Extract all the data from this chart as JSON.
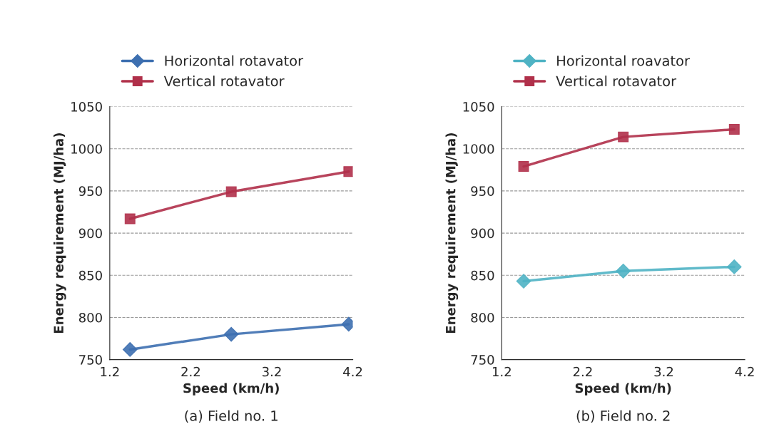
{
  "chart_data": [
    {
      "type": "line",
      "xlabel": "Speed (km/h)",
      "ylabel": "Energy requirement (MJ/ha)",
      "annotations": [
        "(a) Field no. 1"
      ],
      "series": [
        {
          "name": "Horizontal rotavator",
          "color": "#3d6fb0",
          "marker": "diamond",
          "x": [
            1.45,
            2.7,
            4.15
          ],
          "values": [
            762,
            780,
            792
          ]
        },
        {
          "name": "Vertical rotavator",
          "color": "#b0304a",
          "marker": "square",
          "x": [
            1.45,
            2.7,
            4.15
          ],
          "values": [
            917,
            949,
            973
          ]
        }
      ],
      "xlim": [
        1.2,
        4.2
      ],
      "xticks": [
        1.2,
        2.2,
        3.2,
        4.2
      ],
      "ylim": [
        750,
        1050
      ],
      "yticks": [
        750,
        800,
        850,
        900,
        950,
        1000,
        1050
      ],
      "grid": "y",
      "legend": "top",
      "line_style": "solid"
    },
    {
      "type": "line",
      "xlabel": "Speed (km/h)",
      "ylabel": "Energy requirement (MJ/ha)",
      "annotations": [
        "(b) Field no. 2"
      ],
      "series": [
        {
          "name": "Horizontal roavator",
          "color": "#4fb3c4",
          "marker": "diamond",
          "x": [
            1.47,
            2.7,
            4.07
          ],
          "values": [
            843,
            855,
            860
          ]
        },
        {
          "name": "Vertical rotavator",
          "color": "#b0304a",
          "marker": "square",
          "x": [
            1.47,
            2.7,
            4.07
          ],
          "values": [
            979,
            1014,
            1023
          ]
        }
      ],
      "xlim": [
        1.2,
        4.2
      ],
      "xticks": [
        1.2,
        2.2,
        3.2,
        4.2
      ],
      "ylim": [
        750,
        1050
      ],
      "yticks": [
        750,
        800,
        850,
        900,
        950,
        1000,
        1050
      ],
      "grid": "y",
      "legend": "top",
      "line_style": "solid"
    }
  ]
}
